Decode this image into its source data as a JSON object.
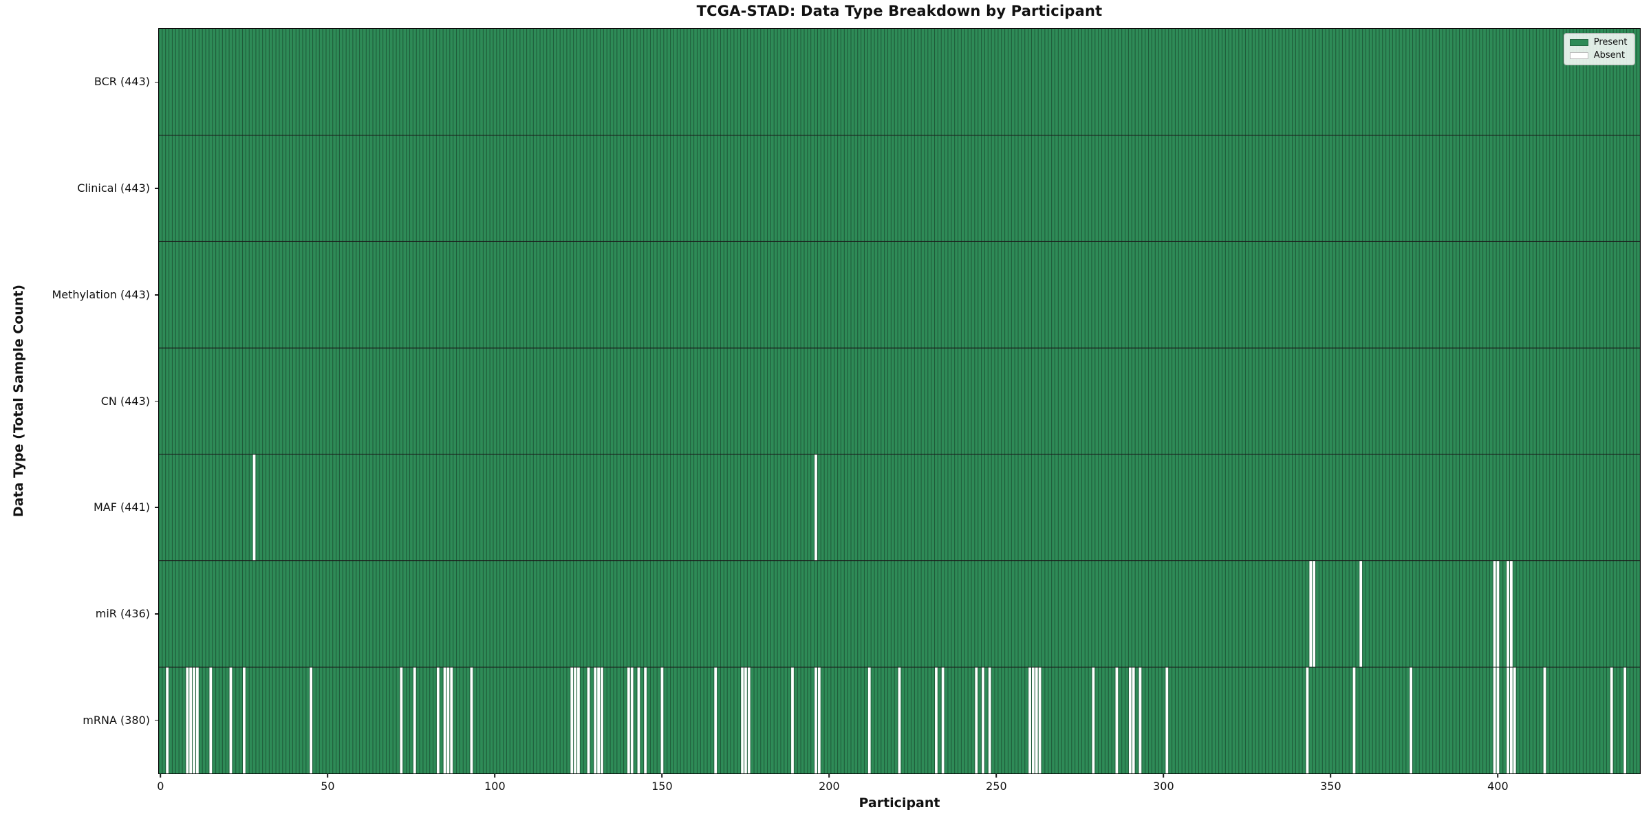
{
  "chart_data": {
    "type": "heatmap",
    "title": "TCGA-STAD: Data Type Breakdown by Participant",
    "xlabel": "Participant",
    "ylabel": "Data Type (Total Sample Count)",
    "n_participants": 443,
    "x_ticks": [
      "0",
      "50",
      "100",
      "150",
      "200",
      "250",
      "300",
      "350",
      "400"
    ],
    "x_range": [
      0,
      443
    ],
    "grid": false,
    "legend_position": "upper right",
    "rows": [
      {
        "label": "BCR (443)",
        "name": "BCR",
        "count": 443,
        "absent": []
      },
      {
        "label": "Clinical (443)",
        "name": "Clinical",
        "count": 443,
        "absent": []
      },
      {
        "label": "Methylation (443)",
        "name": "Methylation",
        "count": 443,
        "absent": []
      },
      {
        "label": "CN (443)",
        "name": "CN",
        "count": 443,
        "absent": []
      },
      {
        "label": "MAF (441)",
        "name": "MAF",
        "count": 441,
        "absent": [
          28,
          196
        ]
      },
      {
        "label": "miR (436)",
        "name": "miR",
        "count": 436,
        "absent": [
          344,
          345,
          359,
          399,
          400,
          403,
          404
        ]
      },
      {
        "label": "mRNA (380)",
        "name": "mRNA",
        "count": 380,
        "absent": [
          2,
          8,
          9,
          10,
          11,
          15,
          21,
          25,
          45,
          72,
          76,
          83,
          85,
          86,
          87,
          93,
          123,
          124,
          125,
          128,
          130,
          131,
          132,
          140,
          141,
          143,
          145,
          150,
          166,
          174,
          175,
          176,
          189,
          196,
          197,
          212,
          221,
          232,
          234,
          244,
          246,
          248,
          260,
          261,
          262,
          263,
          279,
          286,
          290,
          291,
          293,
          301,
          343,
          357,
          374,
          399,
          400,
          403,
          404,
          405,
          414,
          434,
          438
        ]
      }
    ],
    "legend": [
      {
        "label": "Present",
        "color": "#2e8b57"
      },
      {
        "label": "Absent",
        "color": "#ffffff"
      }
    ],
    "colors": {
      "present": "#2e8b57",
      "absent": "#ffffff",
      "cell_edge": "#1f5c3a",
      "row_divider": "#1a1a1a",
      "plot_border": "#000000",
      "text": "#111111"
    }
  }
}
